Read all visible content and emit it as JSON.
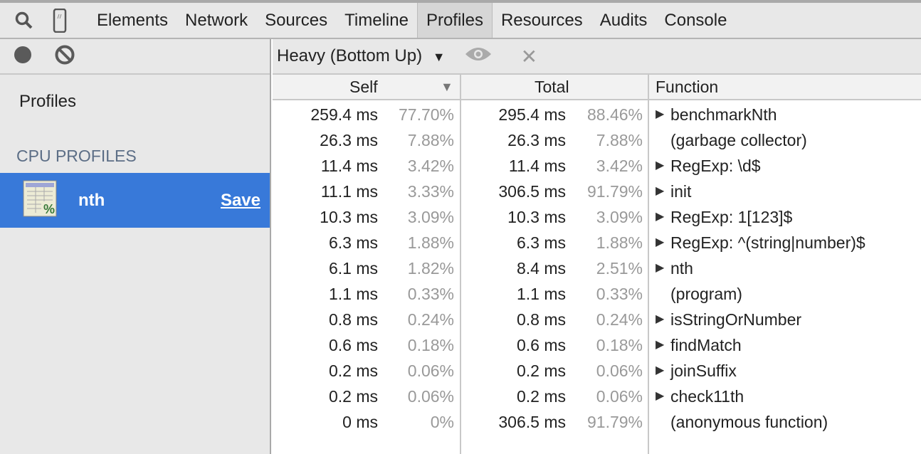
{
  "tabs": [
    "Elements",
    "Network",
    "Sources",
    "Timeline",
    "Profiles",
    "Resources",
    "Audits",
    "Console"
  ],
  "active_tab": "Profiles",
  "sidebar": {
    "title": "Profiles",
    "section": "CPU PROFILES",
    "profile": {
      "name": "nth",
      "save_label": "Save"
    }
  },
  "toolbar": {
    "view_select": "Heavy (Bottom Up)"
  },
  "table": {
    "columns": [
      "Self",
      "Total",
      "Function"
    ],
    "sorted_column": "Self",
    "rows": [
      {
        "self": "259.4 ms",
        "self_pct": "77.70%",
        "total": "295.4 ms",
        "total_pct": "88.46%",
        "function": "benchmarkNth",
        "expandable": true
      },
      {
        "self": "26.3 ms",
        "self_pct": "7.88%",
        "total": "26.3 ms",
        "total_pct": "7.88%",
        "function": "(garbage collector)",
        "expandable": false
      },
      {
        "self": "11.4 ms",
        "self_pct": "3.42%",
        "total": "11.4 ms",
        "total_pct": "3.42%",
        "function": "RegExp: \\d$",
        "expandable": true
      },
      {
        "self": "11.1 ms",
        "self_pct": "3.33%",
        "total": "306.5 ms",
        "total_pct": "91.79%",
        "function": "init",
        "expandable": true
      },
      {
        "self": "10.3 ms",
        "self_pct": "3.09%",
        "total": "10.3 ms",
        "total_pct": "3.09%",
        "function": "RegExp: 1[123]$",
        "expandable": true
      },
      {
        "self": "6.3 ms",
        "self_pct": "1.88%",
        "total": "6.3 ms",
        "total_pct": "1.88%",
        "function": "RegExp: ^(string|number)$",
        "expandable": true
      },
      {
        "self": "6.1 ms",
        "self_pct": "1.82%",
        "total": "8.4 ms",
        "total_pct": "2.51%",
        "function": "nth",
        "expandable": true
      },
      {
        "self": "1.1 ms",
        "self_pct": "0.33%",
        "total": "1.1 ms",
        "total_pct": "0.33%",
        "function": "(program)",
        "expandable": false
      },
      {
        "self": "0.8 ms",
        "self_pct": "0.24%",
        "total": "0.8 ms",
        "total_pct": "0.24%",
        "function": "isStringOrNumber",
        "expandable": true
      },
      {
        "self": "0.6 ms",
        "self_pct": "0.18%",
        "total": "0.6 ms",
        "total_pct": "0.18%",
        "function": "findMatch",
        "expandable": true
      },
      {
        "self": "0.2 ms",
        "self_pct": "0.06%",
        "total": "0.2 ms",
        "total_pct": "0.06%",
        "function": "joinSuffix",
        "expandable": true
      },
      {
        "self": "0.2 ms",
        "self_pct": "0.06%",
        "total": "0.2 ms",
        "total_pct": "0.06%",
        "function": "check11th",
        "expandable": true
      },
      {
        "self": "0 ms",
        "self_pct": "0%",
        "total": "306.5 ms",
        "total_pct": "91.79%",
        "function": "(anonymous function)",
        "expandable": false
      }
    ]
  },
  "colors": {
    "selection": "#3879d9",
    "section_label": "#5c6e86"
  }
}
